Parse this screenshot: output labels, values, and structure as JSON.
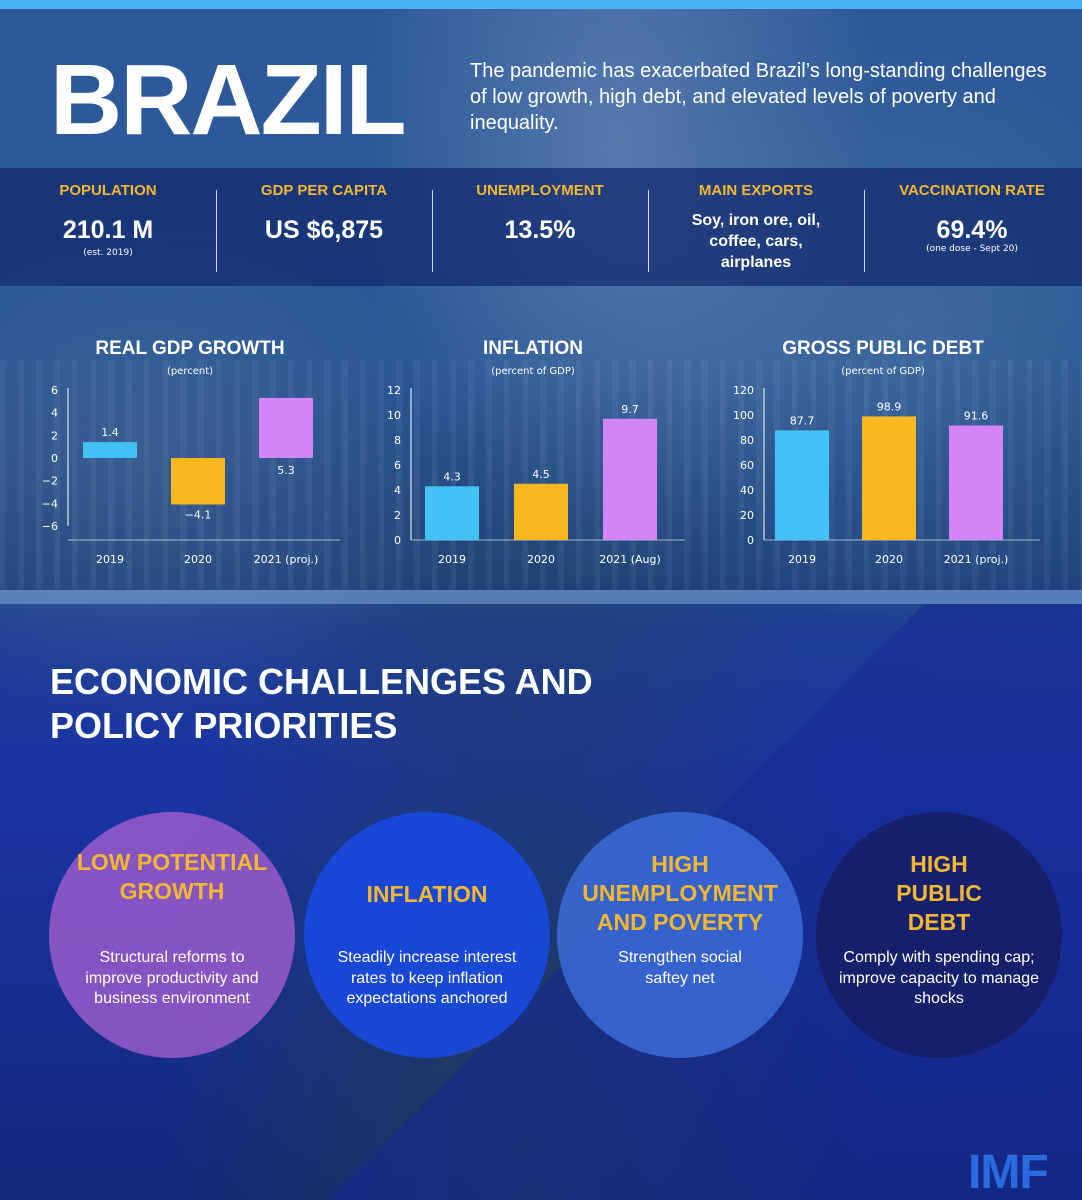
{
  "header": {
    "title": "BRAZIL",
    "intro": "The pandemic has exacerbated Brazil’s long-standing challenges of low growth, high debt, and elevated levels of poverty and inequality."
  },
  "stats": [
    {
      "label": "POPULATION",
      "value": "210.1 M",
      "note": "(est. 2019)"
    },
    {
      "label": "GDP PER CAPITA",
      "value": "US $6,875",
      "note": ""
    },
    {
      "label": "UNEMPLOYMENT",
      "value": "13.5%",
      "note": ""
    },
    {
      "label": "MAIN EXPORTS",
      "value": "Soy, iron ore, oil, coffee, cars, airplanes",
      "note": ""
    },
    {
      "label": "VACCINATION RATE",
      "value": "69.4%",
      "note": "(one dose - Sept 20)"
    }
  ],
  "colors": {
    "blue_bar": "#43c2f6",
    "yellow_bar": "#fbb71f",
    "purple_bar": "#d285f5",
    "accent_yellow": "#f2b732"
  },
  "chart_data": [
    {
      "type": "bar",
      "title": "REAL GDP GROWTH",
      "subtitle": "(percent)",
      "categories": [
        "2019",
        "2020",
        "2021 (proj.)"
      ],
      "values": [
        1.4,
        -4.1,
        5.3
      ],
      "labels": [
        "1.4",
        "−4.1",
        "5.3"
      ],
      "yticks": [
        "6",
        "4",
        "2",
        "0",
        "−2",
        "−4",
        "−6"
      ],
      "ylim": [
        -6,
        6
      ]
    },
    {
      "type": "bar",
      "title": "INFLATION",
      "subtitle": "(percent of GDP)",
      "categories": [
        "2019",
        "2020",
        "2021 (Aug)"
      ],
      "values": [
        4.3,
        4.5,
        9.7
      ],
      "labels": [
        "4.3",
        "4.5",
        "9.7"
      ],
      "yticks": [
        "12",
        "10",
        "8",
        "6",
        "4",
        "2",
        "0"
      ],
      "ylim": [
        0,
        12
      ]
    },
    {
      "type": "bar",
      "title": "GROSS PUBLIC DEBT",
      "subtitle": "(percent of GDP)",
      "categories": [
        "2019",
        "2020",
        "2021 (proj.)"
      ],
      "values": [
        87.7,
        98.9,
        91.6
      ],
      "labels": [
        "87.7",
        "98.9",
        "91.6"
      ],
      "yticks": [
        "120",
        "100",
        "80",
        "60",
        "40",
        "20",
        "0"
      ],
      "ylim": [
        0,
        120
      ]
    }
  ],
  "section": {
    "title": "ECONOMIC CHALLENGES AND POLICY PRIORITIES"
  },
  "priorities": [
    {
      "title": "LOW POTENTIAL GROWTH",
      "body": "Structural reforms to improve productivity and business environment"
    },
    {
      "title": "INFLATION",
      "body": "Steadily increase interest rates to keep inflation expectations anchored"
    },
    {
      "title": "HIGH UNEMPLOYMENT AND POVERTY",
      "body": "Strengthen social saftey net"
    },
    {
      "title": "HIGH PUBLIC DEBT",
      "body": "Comply with spending cap; improve capacity to manage shocks"
    }
  ],
  "footer": {
    "logo": "IMF"
  }
}
